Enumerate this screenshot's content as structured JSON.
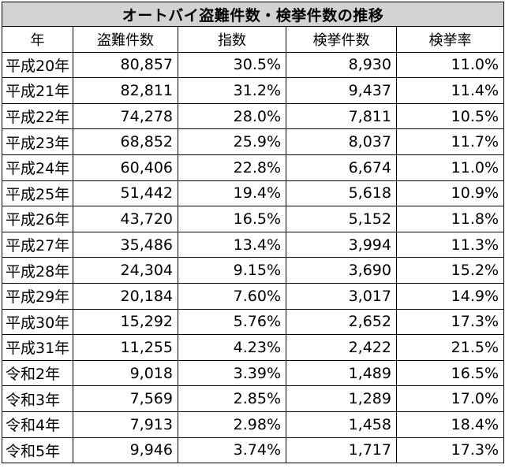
{
  "chart_data": {
    "type": "table",
    "title": "オートバイ盗難件数・検挙件数の推移",
    "columns": [
      "年",
      "盗難件数",
      "指数",
      "検挙件数",
      "検挙率"
    ],
    "rows": [
      [
        "平成20年",
        "80,857",
        "30.5%",
        "8,930",
        "11.0%"
      ],
      [
        "平成21年",
        "82,811",
        "31.2%",
        "9,437",
        "11.4%"
      ],
      [
        "平成22年",
        "74,278",
        "28.0%",
        "7,811",
        "10.5%"
      ],
      [
        "平成23年",
        "68,852",
        "25.9%",
        "8,037",
        "11.7%"
      ],
      [
        "平成24年",
        "60,406",
        "22.8%",
        "6,674",
        "11.0%"
      ],
      [
        "平成25年",
        "51,442",
        "19.4%",
        "5,618",
        "10.9%"
      ],
      [
        "平成26年",
        "43,720",
        "16.5%",
        "5,152",
        "11.8%"
      ],
      [
        "平成27年",
        "35,486",
        "13.4%",
        "3,994",
        "11.3%"
      ],
      [
        "平成28年",
        "24,304",
        "9.15%",
        "3,690",
        "15.2%"
      ],
      [
        "平成29年",
        "20,184",
        "7.60%",
        "3,017",
        "14.9%"
      ],
      [
        "平成30年",
        "15,292",
        "5.76%",
        "2,652",
        "17.3%"
      ],
      [
        "平成31年",
        "11,255",
        "4.23%",
        "2,422",
        "21.5%"
      ],
      [
        "令和2年",
        "9,018",
        "3.39%",
        "1,489",
        "16.5%"
      ],
      [
        "令和3年",
        "7,569",
        "2.85%",
        "1,289",
        "17.0%"
      ],
      [
        "令和4年",
        "7,913",
        "2.98%",
        "1,458",
        "18.4%"
      ],
      [
        "令和5年",
        "9,946",
        "3.74%",
        "1,717",
        "17.3%"
      ]
    ],
    "header_background": "#d3d3d3"
  }
}
